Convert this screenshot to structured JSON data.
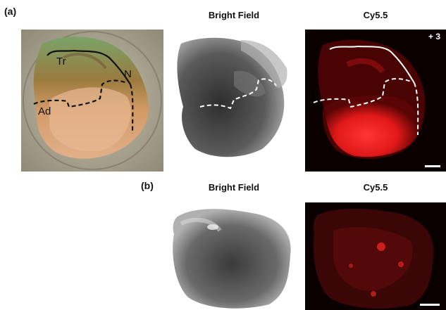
{
  "figure": {
    "row_a": {
      "label": "(a)",
      "headers": {
        "bright_field": "Bright Field",
        "cy55": "Cy5.5"
      },
      "photo_annotations": {
        "tr": "Tr",
        "n": "N",
        "ad": "Ad"
      },
      "cy55_badge": "+ 3"
    },
    "row_b": {
      "label": "(b)",
      "headers": {
        "bright_field": "Bright Field",
        "cy55": "Cy5.5"
      }
    }
  },
  "colors": {
    "fluorescence": "#ff2a2a",
    "dark_bg": "#0a0000",
    "tissue_gray": "#4a4a4a",
    "photo_bg": "#b8b09a"
  }
}
